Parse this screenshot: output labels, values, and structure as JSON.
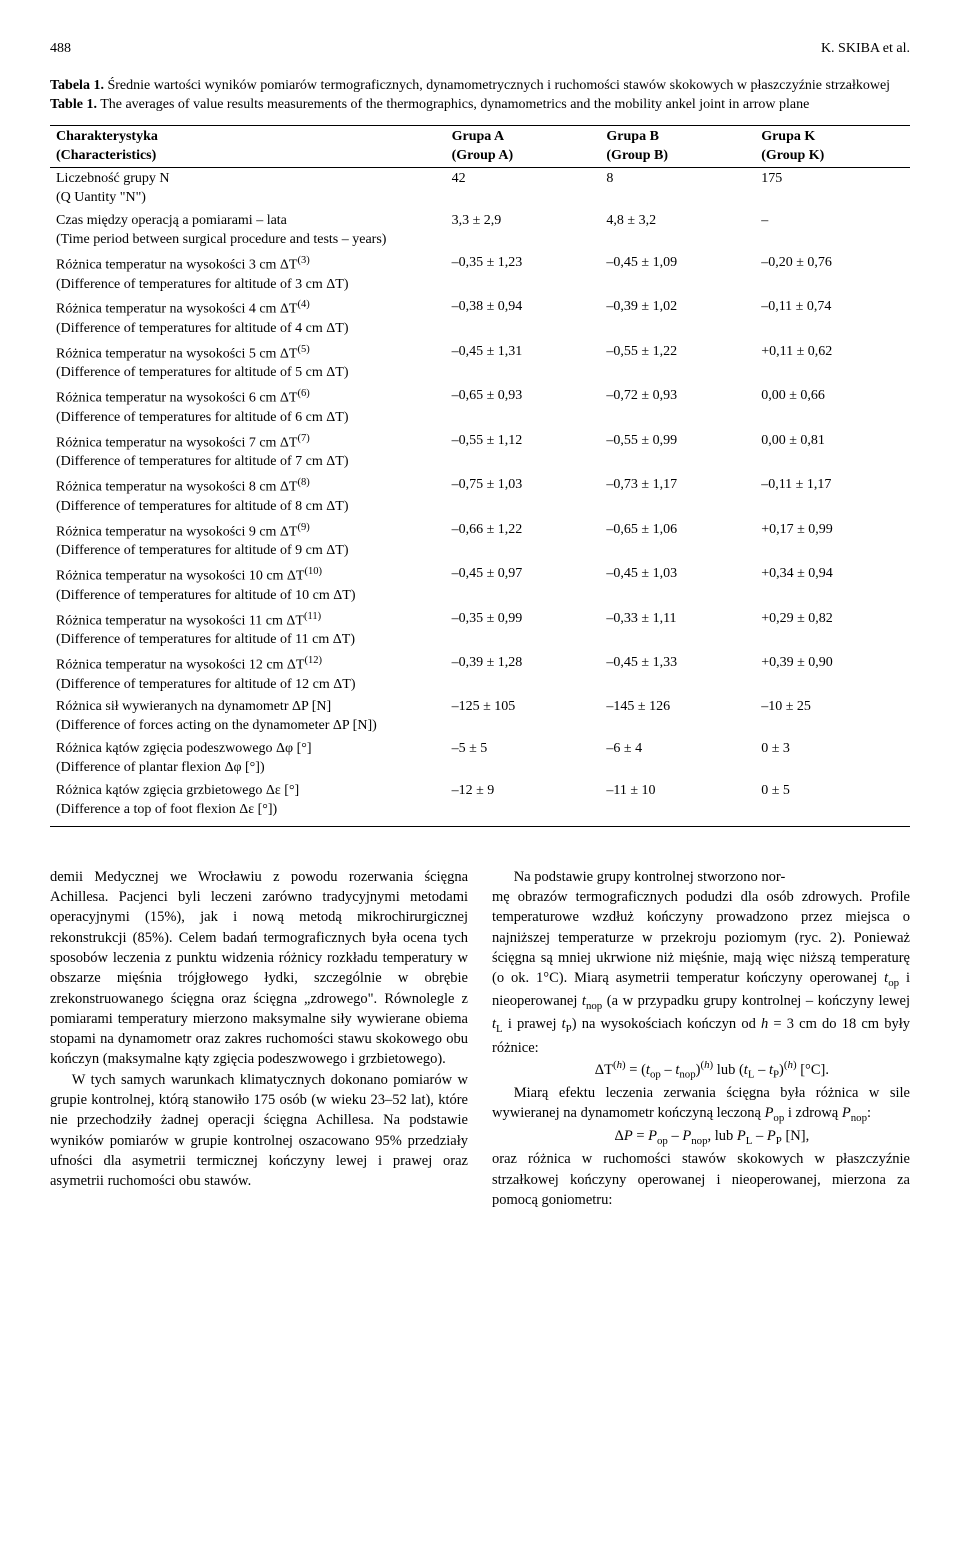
{
  "header": {
    "page_number": "488",
    "running_head": "K. SKIBA et al."
  },
  "table_caption": {
    "label_pl": "Tabela 1.",
    "text_pl": "Średnie wartości wyników pomiarów termograficznych, dynamometrycznych i ruchomości stawów skokowych w płaszczyźnie strzałkowej",
    "label_en": "Table 1.",
    "text_en": "The averages of value results measurements of the thermographics, dynamometrics and the mobility ankel joint in arrow plane"
  },
  "table": {
    "columns": [
      {
        "pl": "Charakterystyka",
        "en": "(Characteristics)"
      },
      {
        "pl": "Grupa A",
        "en": "(Group A)"
      },
      {
        "pl": "Grupa B",
        "en": "(Group B)"
      },
      {
        "pl": "Grupa K",
        "en": "(Group K)"
      }
    ],
    "rows": [
      {
        "char": "Liczebność grupy N\n(Q Uantity \"N\")",
        "a": "42",
        "b": "8",
        "k": "175"
      },
      {
        "char": "Czas między operacją a pomiarami – lata\n(Time period between surgical procedure and tests – years)",
        "a": "3,3 ± 2,9",
        "b": "4,8 ± 3,2",
        "k": "–"
      },
      {
        "char": "Różnica temperatur na wysokości 3 cm ΔT(3)\n(Difference of temperatures for altitude of 3 cm ΔT)",
        "a": "–0,35 ± 1,23",
        "b": "–0,45 ± 1,09",
        "k": "–0,20 ± 0,76"
      },
      {
        "char": "Różnica temperatur na wysokości 4 cm ΔT(4)\n(Difference of temperatures for altitude of 4 cm ΔT)",
        "a": "–0,38 ± 0,94",
        "b": "–0,39 ± 1,02",
        "k": "–0,11 ± 0,74"
      },
      {
        "char": "Różnica temperatur na wysokości 5 cm ΔT(5)\n(Difference of temperatures for altitude of 5 cm ΔT)",
        "a": "–0,45 ± 1,31",
        "b": "–0,55 ± 1,22",
        "k": "+0,11 ± 0,62"
      },
      {
        "char": "Różnica temperatur na wysokości 6 cm ΔT(6)\n(Difference of temperatures for altitude of 6 cm ΔT)",
        "a": "–0,65 ± 0,93",
        "b": "–0,72 ± 0,93",
        "k": "0,00 ± 0,66"
      },
      {
        "char": "Różnica temperatur na wysokości 7 cm ΔT(7)\n(Difference of temperatures for altitude of 7 cm ΔT)",
        "a": "–0,55 ± 1,12",
        "b": "–0,55 ± 0,99",
        "k": "0,00 ± 0,81"
      },
      {
        "char": "Różnica temperatur na wysokości 8 cm ΔT(8)\n(Difference of temperatures for altitude of 8 cm ΔT)",
        "a": "–0,75 ± 1,03",
        "b": "–0,73 ± 1,17",
        "k": "–0,11 ± 1,17"
      },
      {
        "char": "Różnica temperatur na wysokości 9 cm ΔT(9)\n(Difference of temperatures for altitude of 9 cm ΔT)",
        "a": "–0,66 ± 1,22",
        "b": "–0,65 ± 1,06",
        "k": "+0,17 ± 0,99"
      },
      {
        "char": "Różnica temperatur na wysokości 10 cm ΔT(10)\n(Difference of temperatures for altitude of 10 cm ΔT)",
        "a": "–0,45 ± 0,97",
        "b": "–0,45 ± 1,03",
        "k": "+0,34 ± 0,94"
      },
      {
        "char": "Różnica temperatur na wysokości 11 cm ΔT(11)\n(Difference of temperatures for altitude of 11 cm ΔT)",
        "a": "–0,35 ± 0,99",
        "b": "–0,33 ± 1,11",
        "k": "+0,29 ± 0,82"
      },
      {
        "char": "Różnica temperatur na wysokości 12 cm ΔT(12)\n(Difference of temperatures for altitude of 12 cm ΔT)",
        "a": "–0,39 ± 1,28",
        "b": "–0,45 ± 1,33",
        "k": "+0,39 ± 0,90"
      },
      {
        "char": "Różnica sił wywieranych na dynamometr ΔP [N]\n(Difference of forces acting on the dynamometer ΔP [N])",
        "a": "–125 ± 105",
        "b": "–145 ± 126",
        "k": "–10 ± 25"
      },
      {
        "char": "Różnica kątów zgięcia podeszwowego Δφ [°]\n(Difference of plantar flexion Δφ [°])",
        "a": "–5 ± 5",
        "b": "–6 ± 4",
        "k": "0 ± 3"
      },
      {
        "char": "Różnica kątów zgięcia grzbietowego Δε [°]\n(Difference a top of foot flexion Δε [°])",
        "a": "–12 ± 9",
        "b": "–11 ± 10",
        "k": "0 ± 5"
      }
    ]
  },
  "body": {
    "left": [
      "demii Medycznej we Wrocławiu z powodu rozerwania ścięgna Achillesa. Pacjenci byli leczeni zarówno tradycyjnymi metodami operacyjnymi (15%), jak i nową metodą mikrochirurgicznej rekonstrukcji (85%). Celem badań termograficznych była ocena tych sposobów leczenia z punktu widzenia różnicy rozkładu temperatury w obszarze mięśnia trójgłowego łydki, szczególnie w obrębie zrekonstruowanego ścięgna oraz ścięgna „zdrowego\". Równolegle z pomiarami temperatury mierzono maksymalne siły wywierane obiema stopami na dynamometr oraz zakres ruchomości stawu skokowego obu kończyn (maksymalne kąty zgięcia podeszwowego i grzbietowego).",
      "W tych samych warunkach klimatycznych dokonano pomiarów w grupie kontrolnej, którą stanowiło 175 osób (w wieku 23–52 lat), które nie przechodziły żadnej operacji ścięgna Achillesa. Na podstawie wyników pomiarów w grupie kontrolnej oszacowano 95% przedziały ufności dla asymetrii termicznej kończyny lewej i prawej oraz asymetrii ruchomości obu stawów.",
      "Na podstawie grupy kontrolnej stworzono nor-"
    ],
    "right": [
      "mę obrazów termograficznych podudzi dla osób zdrowych. Profile temperaturowe wzdłuż kończyny prowadzono przez miejsca o najniższej temperaturze w przekroju poziomym (ryc. 2). Ponieważ ścięgna są mniej ukrwione niż mięśnie, mają więc niższą temperaturę (o ok. 1°C). Miarą asymetrii temperatur kończyny operowanej top i nieoperowanej tnop (a w przypadku grupy kontrolnej – kończyny lewej tL i prawej tP) na wysokościach kończyn od h = 3 cm do 18 cm były różnice:"
    ],
    "eq1": "ΔT(h) = (top – tnop)(h) lub (tL – tP)(h) [°C].",
    "right2": "Miarą efektu leczenia zerwania ścięgna była różnica w sile wywieranej na dynamometr kończyną leczoną Pop i zdrową Pnop:",
    "eq2": "ΔP = Pop – Pnop, lub PL – PP [N],",
    "right3": "oraz różnica w ruchomości stawów skokowych w płaszczyźnie strzałkowej kończyny operowanej i nieoperowanej, mierzona za pomocą goniometru:"
  }
}
